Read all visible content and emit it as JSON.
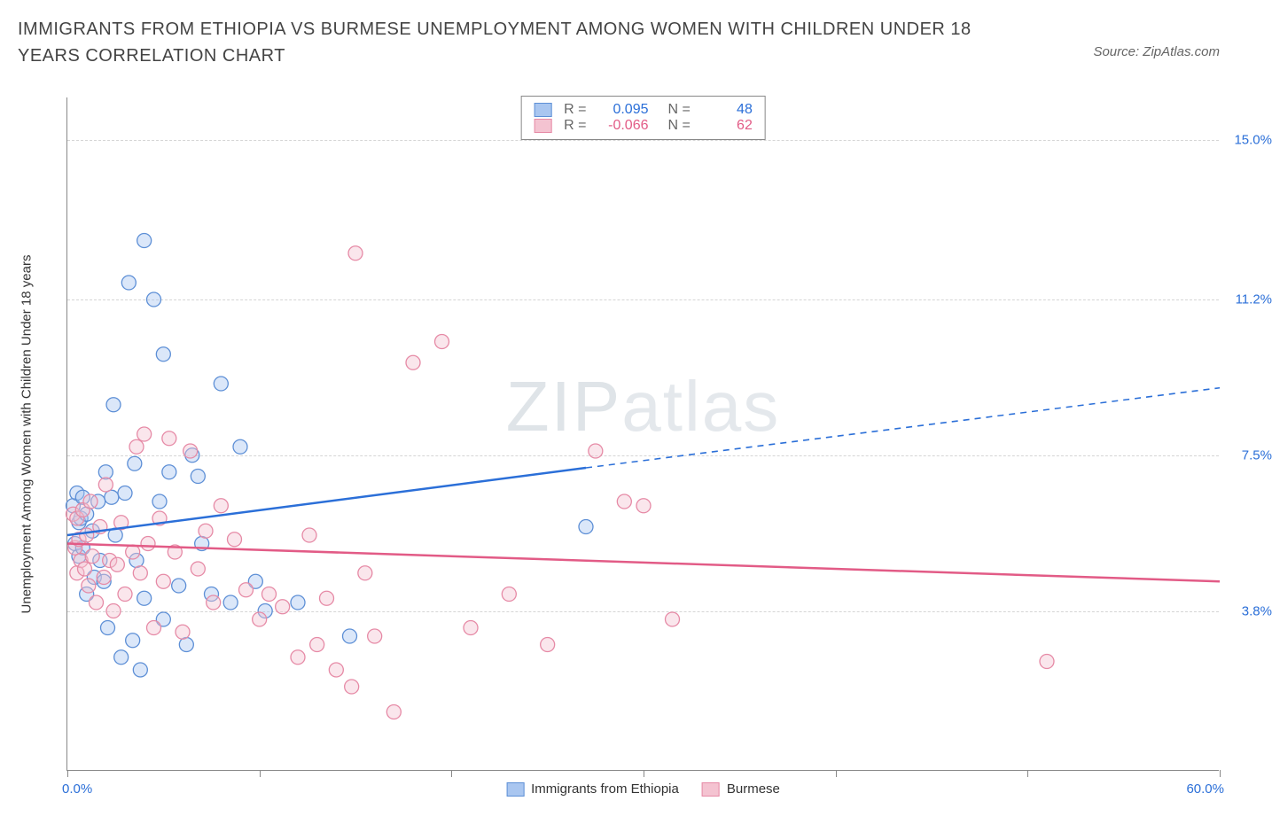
{
  "title": "IMMIGRANTS FROM ETHIOPIA VS BURMESE UNEMPLOYMENT AMONG WOMEN WITH CHILDREN UNDER 18 YEARS CORRELATION CHART",
  "source": "Source: ZipAtlas.com",
  "ylabel": "Unemployment Among Women with Children Under 18 years",
  "watermark_a": "ZIP",
  "watermark_b": "atlas",
  "chart": {
    "type": "scatter-with-regression",
    "xlim": [
      0,
      60
    ],
    "ylim": [
      0,
      16
    ],
    "x_ticks": [
      0,
      10,
      20,
      30,
      40,
      50,
      60
    ],
    "x_min_label": "0.0%",
    "x_max_label": "60.0%",
    "y_ticks": [
      3.8,
      7.5,
      11.2,
      15.0
    ],
    "y_tick_labels": [
      "3.8%",
      "7.5%",
      "11.2%",
      "15.0%"
    ],
    "grid_color": "#d5d5d5",
    "axis_color": "#888888",
    "background_color": "#ffffff",
    "ytick_label_color": "#2b6fd8",
    "marker_radius": 8,
    "marker_opacity": 0.42,
    "line_width": 2.5
  },
  "series": [
    {
      "name": "Immigrants from Ethiopia",
      "color_fill": "#a9c6f0",
      "color_stroke": "#5d8fd6",
      "line_color": "#2b6fd8",
      "R": "0.095",
      "N": "48",
      "R_color": "#2b6fd8",
      "reg_solid": {
        "x1": 0,
        "y1": 5.6,
        "x2": 27,
        "y2": 7.2
      },
      "reg_dash": {
        "x1": 27,
        "y1": 7.2,
        "x2": 60,
        "y2": 9.1
      },
      "points": [
        [
          0.3,
          6.3
        ],
        [
          0.4,
          5.4
        ],
        [
          0.5,
          6.6
        ],
        [
          0.6,
          5.1
        ],
        [
          0.6,
          5.9
        ],
        [
          0.7,
          6.0
        ],
        [
          0.8,
          5.3
        ],
        [
          0.8,
          6.5
        ],
        [
          1.0,
          4.2
        ],
        [
          1.0,
          6.1
        ],
        [
          1.3,
          5.7
        ],
        [
          1.4,
          4.6
        ],
        [
          1.6,
          6.4
        ],
        [
          1.7,
          5.0
        ],
        [
          1.9,
          4.5
        ],
        [
          2.0,
          7.1
        ],
        [
          2.1,
          3.4
        ],
        [
          2.3,
          6.5
        ],
        [
          2.4,
          8.7
        ],
        [
          2.5,
          5.6
        ],
        [
          2.8,
          2.7
        ],
        [
          3.0,
          6.6
        ],
        [
          3.2,
          11.6
        ],
        [
          3.4,
          3.1
        ],
        [
          3.5,
          7.3
        ],
        [
          3.6,
          5.0
        ],
        [
          3.8,
          2.4
        ],
        [
          4.0,
          4.1
        ],
        [
          4.0,
          12.6
        ],
        [
          4.5,
          11.2
        ],
        [
          4.8,
          6.4
        ],
        [
          5.0,
          9.9
        ],
        [
          5.0,
          3.6
        ],
        [
          5.3,
          7.1
        ],
        [
          5.8,
          4.4
        ],
        [
          6.2,
          3.0
        ],
        [
          6.5,
          7.5
        ],
        [
          6.8,
          7.0
        ],
        [
          7.0,
          5.4
        ],
        [
          7.5,
          4.2
        ],
        [
          8.0,
          9.2
        ],
        [
          8.5,
          4.0
        ],
        [
          9.0,
          7.7
        ],
        [
          9.8,
          4.5
        ],
        [
          10.3,
          3.8
        ],
        [
          12.0,
          4.0
        ],
        [
          27.0,
          5.8
        ],
        [
          14.7,
          3.2
        ]
      ]
    },
    {
      "name": "Burmese",
      "color_fill": "#f4c3d1",
      "color_stroke": "#e68aa6",
      "line_color": "#e25b86",
      "R": "-0.066",
      "N": "62",
      "R_color": "#e25b86",
      "reg_solid": {
        "x1": 0,
        "y1": 5.4,
        "x2": 60,
        "y2": 4.5
      },
      "reg_dash": null,
      "points": [
        [
          0.3,
          6.1
        ],
        [
          0.4,
          5.3
        ],
        [
          0.5,
          4.7
        ],
        [
          0.5,
          6.0
        ],
        [
          0.6,
          5.5
        ],
        [
          0.7,
          5.0
        ],
        [
          0.8,
          6.2
        ],
        [
          0.9,
          4.8
        ],
        [
          1.0,
          5.6
        ],
        [
          1.1,
          4.4
        ],
        [
          1.2,
          6.4
        ],
        [
          1.3,
          5.1
        ],
        [
          1.5,
          4.0
        ],
        [
          1.7,
          5.8
        ],
        [
          1.9,
          4.6
        ],
        [
          2.0,
          6.8
        ],
        [
          2.2,
          5.0
        ],
        [
          2.4,
          3.8
        ],
        [
          2.6,
          4.9
        ],
        [
          2.8,
          5.9
        ],
        [
          3.0,
          4.2
        ],
        [
          3.4,
          5.2
        ],
        [
          3.6,
          7.7
        ],
        [
          3.8,
          4.7
        ],
        [
          4.0,
          8.0
        ],
        [
          4.2,
          5.4
        ],
        [
          4.5,
          3.4
        ],
        [
          4.8,
          6.0
        ],
        [
          5.0,
          4.5
        ],
        [
          5.3,
          7.9
        ],
        [
          5.6,
          5.2
        ],
        [
          6.0,
          3.3
        ],
        [
          6.4,
          7.6
        ],
        [
          6.8,
          4.8
        ],
        [
          7.2,
          5.7
        ],
        [
          7.6,
          4.0
        ],
        [
          8.0,
          6.3
        ],
        [
          8.7,
          5.5
        ],
        [
          9.3,
          4.3
        ],
        [
          10.0,
          3.6
        ],
        [
          10.5,
          4.2
        ],
        [
          11.2,
          3.9
        ],
        [
          12.0,
          2.7
        ],
        [
          12.6,
          5.6
        ],
        [
          13.0,
          3.0
        ],
        [
          13.5,
          4.1
        ],
        [
          14.0,
          2.4
        ],
        [
          14.8,
          2.0
        ],
        [
          15.0,
          12.3
        ],
        [
          15.5,
          4.7
        ],
        [
          16.0,
          3.2
        ],
        [
          17.0,
          1.4
        ],
        [
          18.0,
          9.7
        ],
        [
          19.5,
          10.2
        ],
        [
          21.0,
          3.4
        ],
        [
          23.0,
          4.2
        ],
        [
          25.0,
          3.0
        ],
        [
          27.5,
          7.6
        ],
        [
          29.0,
          6.4
        ],
        [
          30.0,
          6.3
        ],
        [
          31.5,
          3.6
        ],
        [
          51.0,
          2.6
        ]
      ]
    }
  ],
  "legend_labels": {
    "R": "R =",
    "N": "N ="
  }
}
